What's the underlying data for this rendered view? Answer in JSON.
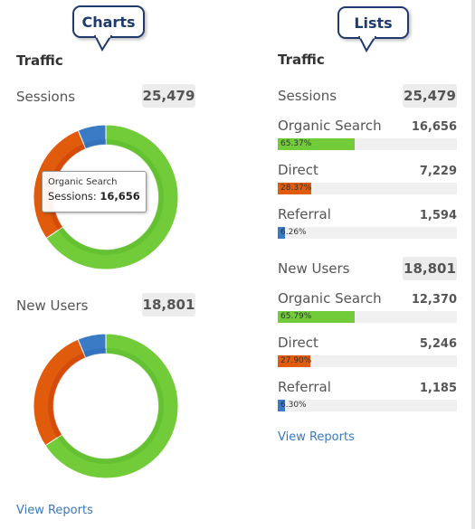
{
  "callouts": {
    "charts": "Charts",
    "lists": "Lists"
  },
  "colors": {
    "organic": "#72cc3a",
    "direct": "#e05c0c",
    "referral": "#3b7ac5",
    "link": "#3a78bd"
  },
  "charts_panel": {
    "title": "Traffic",
    "sessions": {
      "label": "Sessions",
      "total": "25,479",
      "tooltip": {
        "title": "Organic Search",
        "label": "Sessions:",
        "value": "16,656"
      }
    },
    "new_users": {
      "label": "New Users",
      "total": "18,801"
    },
    "view_reports": "View Reports"
  },
  "lists_panel": {
    "title": "Traffic",
    "sessions": {
      "label": "Sessions",
      "total": "25,479",
      "rows": [
        {
          "label": "Organic Search",
          "value": "16,656",
          "percent_label": "65.37%",
          "percent": 65.37
        },
        {
          "label": "Direct",
          "value": "7,229",
          "percent_label": "28.37%",
          "percent": 28.37
        },
        {
          "label": "Referral",
          "value": "1,594",
          "percent_label": "6.26%",
          "percent": 6.26
        }
      ]
    },
    "new_users": {
      "label": "New Users",
      "total": "18,801",
      "rows": [
        {
          "label": "Organic Search",
          "value": "12,370",
          "percent_label": "65.79%",
          "percent": 65.79
        },
        {
          "label": "Direct",
          "value": "5,246",
          "percent_label": "27.90%",
          "percent": 27.9
        },
        {
          "label": "Referral",
          "value": "1,185",
          "percent_label": "6.30%",
          "percent": 6.3
        }
      ]
    },
    "view_reports": "View Reports"
  },
  "chart_data": [
    {
      "type": "pie",
      "categories": [
        "Organic Search",
        "Direct",
        "Referral"
      ],
      "values": [
        16656,
        7229,
        1594
      ],
      "colors": [
        "#72cc3a",
        "#e05c0c",
        "#3b7ac5"
      ]
    },
    {
      "type": "pie",
      "categories": [
        "Organic Search",
        "Direct",
        "Referral"
      ],
      "values": [
        12370,
        5246,
        1185
      ],
      "colors": [
        "#72cc3a",
        "#e05c0c",
        "#3b7ac5"
      ]
    }
  ]
}
